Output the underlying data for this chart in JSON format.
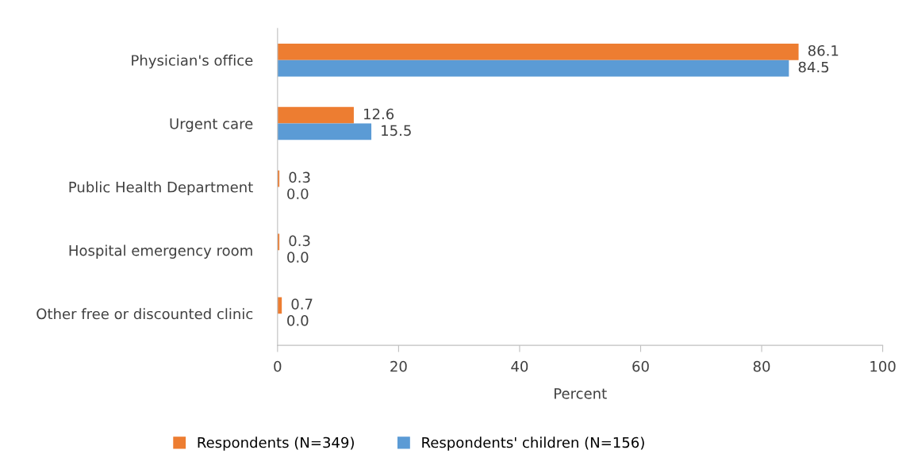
{
  "chart_data": {
    "type": "bar",
    "orientation": "horizontal",
    "xlabel": "Percent",
    "categories": [
      "Physician's office",
      "Urgent care",
      "Public Health Department",
      "Hospital emergency room",
      "Other free or discounted clinic"
    ],
    "series": [
      {
        "name": "Respondents (N=349)",
        "color": "#ed7d31",
        "values": [
          86.1,
          12.6,
          0.3,
          0.3,
          0.7
        ],
        "value_labels": [
          "86.1",
          "12.6",
          "0.3",
          "0.3",
          "0.7"
        ]
      },
      {
        "name": "Respondents' children (N=156)",
        "color": "#5b9bd5",
        "values": [
          84.5,
          15.5,
          0.0,
          0.0,
          0.0
        ],
        "value_labels": [
          "84.5",
          "15.5",
          "0.0",
          "0.0",
          "0.0"
        ]
      }
    ],
    "xlim": [
      0,
      100
    ],
    "xticks": [
      0,
      20,
      40,
      60,
      80,
      100
    ],
    "grid": false,
    "legend": "bottom"
  }
}
